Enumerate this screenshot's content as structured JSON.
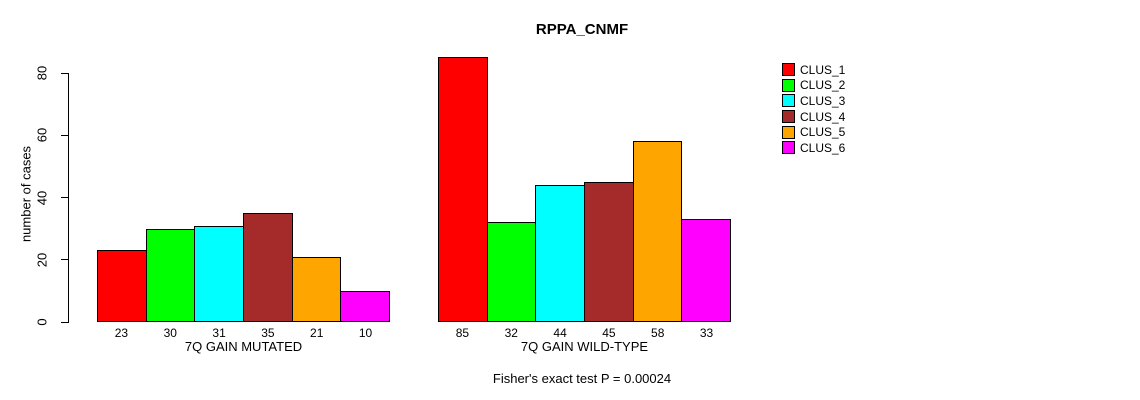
{
  "figure": {
    "title": "RPPA_CNMF",
    "y_axis": {
      "label": "number of cases",
      "ticks": [
        0,
        20,
        40,
        60,
        80
      ]
    },
    "footer": "Fisher's exact test P = 0.00024"
  },
  "legend": {
    "items": [
      {
        "label": "CLUS_1",
        "color": "#FF0000"
      },
      {
        "label": "CLUS_2",
        "color": "#00FF00"
      },
      {
        "label": "CLUS_3",
        "color": "#00FFFF"
      },
      {
        "label": "CLUS_4",
        "color": "#A52A2A"
      },
      {
        "label": "CLUS_5",
        "color": "#FFA500"
      },
      {
        "label": "CLUS_6",
        "color": "#FF00FF"
      }
    ]
  },
  "chart_data": {
    "type": "bar",
    "title": "RPPA_CNMF",
    "ylabel": "number of cases",
    "xlabel": "",
    "ylim": [
      0,
      85
    ],
    "yticks": [
      0,
      20,
      40,
      60,
      80
    ],
    "grid": false,
    "legend_position": "right-outside",
    "series": [
      "CLUS_1",
      "CLUS_2",
      "CLUS_3",
      "CLUS_4",
      "CLUS_5",
      "CLUS_6"
    ],
    "colors": [
      "#FF0000",
      "#00FF00",
      "#00FFFF",
      "#A52A2A",
      "#FFA500",
      "#FF00FF"
    ],
    "groups": [
      {
        "label": "7Q GAIN MUTATED",
        "values": [
          23,
          30,
          31,
          35,
          21,
          10
        ]
      },
      {
        "label": "7Q GAIN WILD-TYPE",
        "values": [
          85,
          32,
          44,
          45,
          58,
          33
        ]
      }
    ],
    "bar_value_labels_shown": true,
    "annotation": "Fisher's exact test P = 0.00024"
  }
}
